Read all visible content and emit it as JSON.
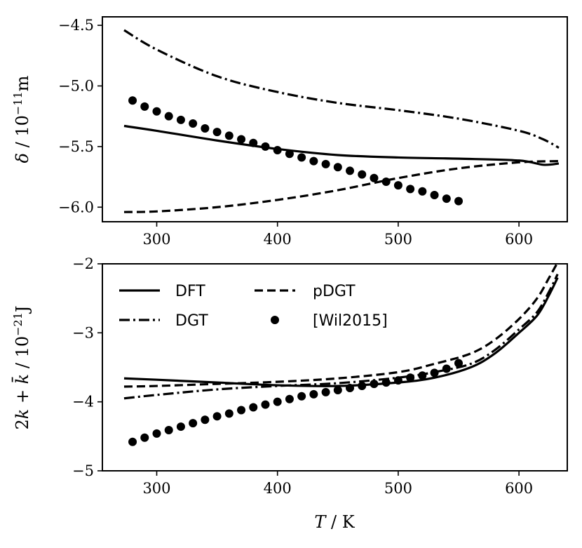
{
  "chart_data": [
    {
      "type": "line",
      "id": "top",
      "xlabel": "T / K",
      "ylabel": "δ / 10⁻¹¹m",
      "xlim": [
        255,
        640
      ],
      "ylim": [
        -6.12,
        -4.43
      ],
      "xticks": [
        300,
        400,
        500,
        600
      ],
      "yticks": [
        -4.5,
        -5.0,
        -5.5,
        -6.0
      ],
      "xtick_labels": [
        "300",
        "400",
        "500",
        "600"
      ],
      "ytick_labels": [
        "−4.5",
        "−5.0",
        "−5.5",
        "−6.0"
      ],
      "series": [
        {
          "name": "DFT",
          "style": "solid",
          "x": [
            273,
            300,
            350,
            400,
            450,
            500,
            550,
            600,
            620,
            633
          ],
          "y": [
            -5.33,
            -5.37,
            -5.45,
            -5.52,
            -5.57,
            -5.59,
            -5.6,
            -5.615,
            -5.65,
            -5.64
          ]
        },
        {
          "name": "DGT",
          "style": "dashdot",
          "x": [
            273,
            300,
            350,
            400,
            450,
            500,
            550,
            600,
            620,
            633
          ],
          "y": [
            -4.54,
            -4.7,
            -4.92,
            -5.05,
            -5.14,
            -5.2,
            -5.27,
            -5.37,
            -5.44,
            -5.51
          ]
        },
        {
          "name": "pDGT",
          "style": "dashed",
          "x": [
            273,
            300,
            350,
            400,
            450,
            500,
            550,
            600,
            633
          ],
          "y": [
            -6.04,
            -6.035,
            -6.0,
            -5.94,
            -5.86,
            -5.76,
            -5.68,
            -5.63,
            -5.62
          ]
        },
        {
          "name": "[Wil2015]",
          "style": "dots",
          "x": [
            280,
            290,
            300,
            310,
            320,
            330,
            340,
            350,
            360,
            370,
            380,
            390,
            400,
            410,
            420,
            430,
            440,
            450,
            460,
            470,
            480,
            490,
            500,
            510,
            520,
            530,
            540,
            550
          ],
          "y": [
            -5.12,
            -5.17,
            -5.21,
            -5.25,
            -5.28,
            -5.31,
            -5.35,
            -5.38,
            -5.41,
            -5.44,
            -5.47,
            -5.5,
            -5.53,
            -5.56,
            -5.59,
            -5.62,
            -5.645,
            -5.67,
            -5.7,
            -5.73,
            -5.76,
            -5.79,
            -5.82,
            -5.85,
            -5.87,
            -5.9,
            -5.93,
            -5.95
          ]
        }
      ]
    },
    {
      "type": "line",
      "id": "bottom",
      "xlabel": "T / K",
      "ylabel": "2k + k̄ / 10⁻²¹J",
      "xlim": [
        255,
        640
      ],
      "ylim": [
        -5.0,
        -2.0
      ],
      "xticks": [
        300,
        400,
        500,
        600
      ],
      "yticks": [
        -2,
        -3,
        -4,
        -5
      ],
      "xtick_labels": [
        "300",
        "400",
        "500",
        "600"
      ],
      "ytick_labels": [
        "−2",
        "−3",
        "−4",
        "−5"
      ],
      "legend_position": "upper-left",
      "series": [
        {
          "name": "DFT",
          "style": "solid",
          "x": [
            273,
            300,
            350,
            400,
            450,
            500,
            530,
            560,
            580,
            600,
            615,
            625,
            632
          ],
          "y": [
            -3.66,
            -3.68,
            -3.72,
            -3.76,
            -3.77,
            -3.72,
            -3.65,
            -3.5,
            -3.3,
            -3.0,
            -2.75,
            -2.45,
            -2.2
          ]
        },
        {
          "name": "DGT",
          "style": "dashdot",
          "x": [
            273,
            300,
            350,
            400,
            450,
            500,
            530,
            560,
            580,
            600,
            615,
            625,
            632
          ],
          "y": [
            -3.95,
            -3.9,
            -3.82,
            -3.77,
            -3.73,
            -3.65,
            -3.57,
            -3.45,
            -3.25,
            -2.95,
            -2.7,
            -2.4,
            -2.15
          ]
        },
        {
          "name": "pDGT",
          "style": "dashed",
          "x": [
            273,
            300,
            350,
            400,
            450,
            500,
            530,
            560,
            580,
            600,
            615,
            625,
            632
          ],
          "y": [
            -3.78,
            -3.77,
            -3.74,
            -3.71,
            -3.66,
            -3.57,
            -3.45,
            -3.3,
            -3.1,
            -2.8,
            -2.5,
            -2.2,
            -1.98
          ]
        },
        {
          "name": "[Wil2015]",
          "style": "dots",
          "x": [
            280,
            290,
            300,
            310,
            320,
            330,
            340,
            350,
            360,
            370,
            380,
            390,
            400,
            410,
            420,
            430,
            440,
            450,
            460,
            470,
            480,
            490,
            500,
            510,
            520,
            530,
            540,
            550
          ],
          "y": [
            -4.58,
            -4.52,
            -4.46,
            -4.41,
            -4.36,
            -4.31,
            -4.26,
            -4.21,
            -4.17,
            -4.12,
            -4.08,
            -4.04,
            -4.0,
            -3.96,
            -3.92,
            -3.89,
            -3.86,
            -3.83,
            -3.8,
            -3.77,
            -3.74,
            -3.72,
            -3.69,
            -3.65,
            -3.62,
            -3.58,
            -3.52,
            -3.44
          ]
        }
      ]
    }
  ],
  "legend": {
    "items": [
      {
        "label": "DFT",
        "style": "solid"
      },
      {
        "label": "pDGT",
        "style": "dashed"
      },
      {
        "label": "DGT",
        "style": "dashdot"
      },
      {
        "label": "[Wil2015]",
        "style": "dots"
      }
    ]
  },
  "axes_text": {
    "xlabel": "T / K"
  }
}
